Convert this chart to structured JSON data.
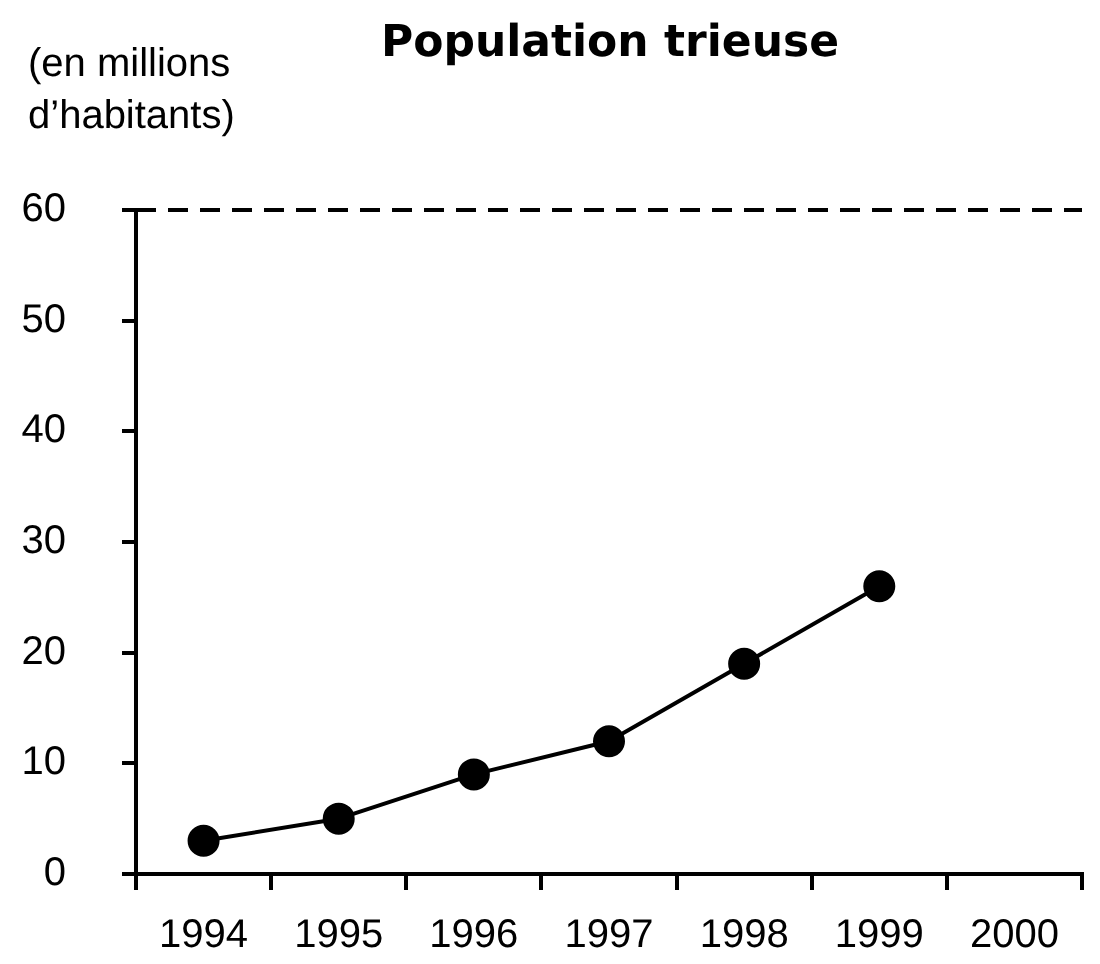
{
  "chart_data": {
    "type": "line",
    "title": "Population trieuse",
    "ylabel": "(en millions d’habitants)",
    "categories": [
      "1994",
      "1995",
      "1996",
      "1997",
      "1998",
      "1999",
      "2000"
    ],
    "values": [
      3,
      5,
      9,
      12,
      19,
      26,
      null
    ],
    "color": "#000000",
    "marker": "circle",
    "line_style": "solid",
    "ylim": [
      0,
      60
    ],
    "yticks": [
      0,
      10,
      20,
      30,
      40,
      50,
      60
    ],
    "ref_lines": [
      {
        "axis": "y",
        "value": 60,
        "line_style": "dashed",
        "color": "#000000"
      }
    ]
  }
}
